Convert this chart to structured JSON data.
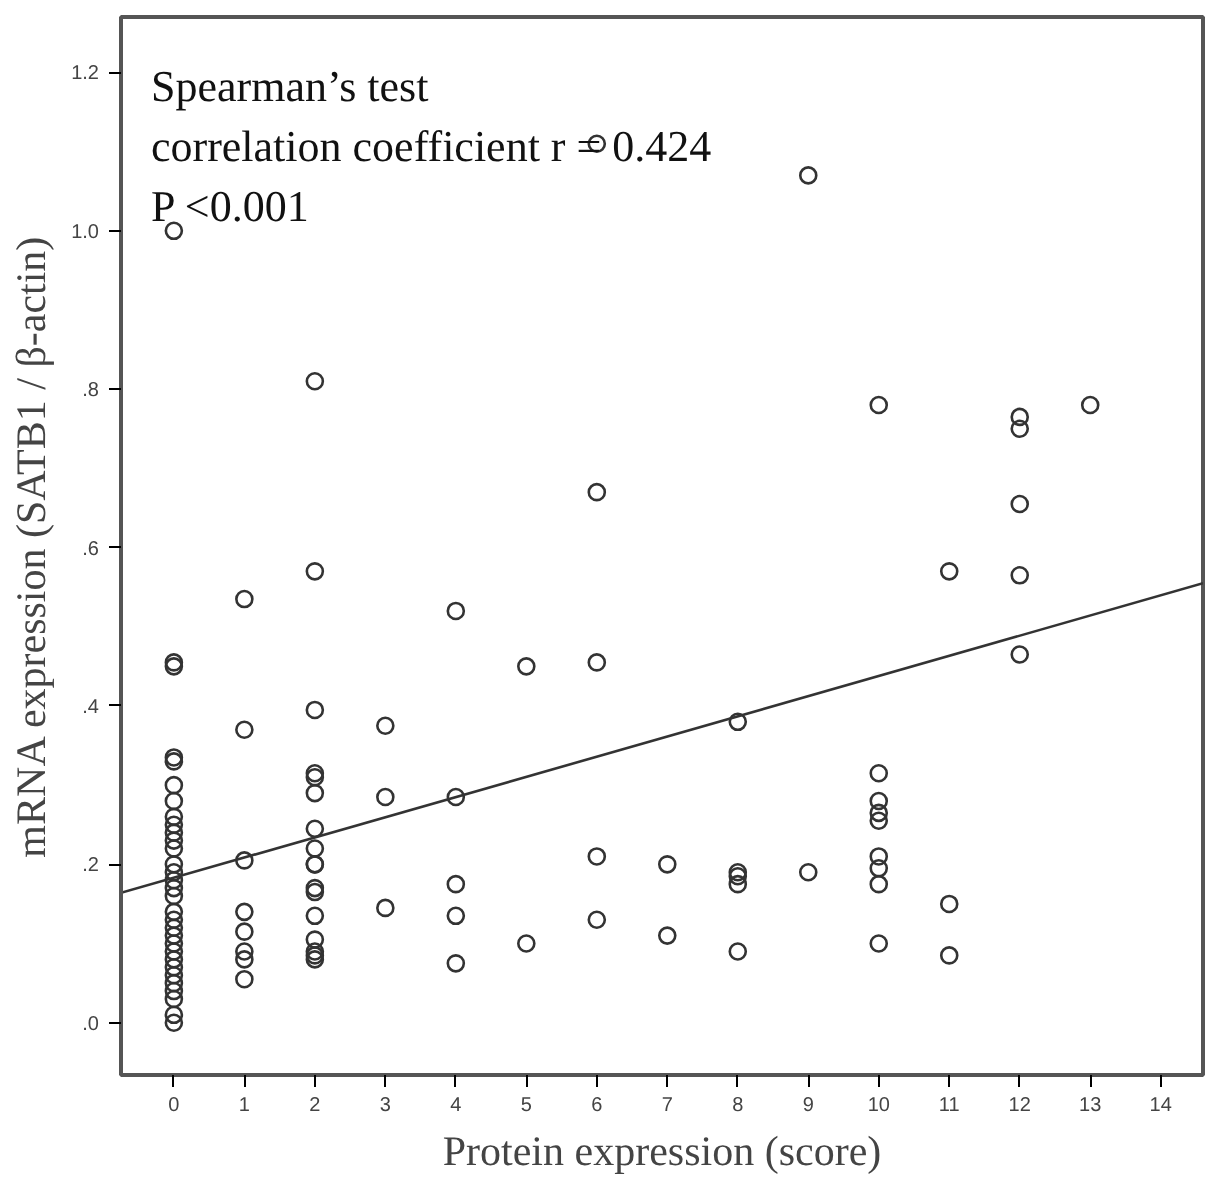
{
  "chart_data": {
    "type": "scatter",
    "xlabel": "Protein expression (score)",
    "ylabel": "mRNA expression (SATB1 / β-actin)",
    "annotations": [
      "Spearman’s test",
      "correlation coefficient r = 0.424",
      "P <0.001"
    ],
    "xlim": [
      -0.75,
      14.6
    ],
    "ylim": [
      -0.066,
      1.27
    ],
    "xticks": [
      0,
      1,
      2,
      3,
      4,
      5,
      6,
      7,
      8,
      9,
      10,
      11,
      12,
      13,
      14
    ],
    "yticks": [
      {
        "value": 0,
        "label": ".0"
      },
      {
        "value": 0.2,
        "label": ".2"
      },
      {
        "value": 0.4,
        "label": ".4"
      },
      {
        "value": 0.6,
        "label": ".6"
      },
      {
        "value": 0.8,
        "label": ".8"
      },
      {
        "value": 1.0,
        "label": "1.0"
      },
      {
        "value": 1.2,
        "label": "1.2"
      }
    ],
    "grid": false,
    "series": [
      {
        "color": "#333333",
        "marker": "circle",
        "x": [
          0,
          0,
          0,
          0,
          0,
          0,
          0,
          0,
          0,
          0,
          0,
          0,
          0,
          0,
          0,
          0,
          0,
          0,
          0,
          0,
          0,
          0,
          0,
          0,
          0,
          0,
          0,
          0,
          0,
          0,
          0,
          1,
          1,
          1,
          1,
          1,
          1,
          1,
          1,
          2,
          2,
          2,
          2,
          2,
          2,
          2,
          2,
          2,
          2,
          2,
          2,
          2,
          2,
          2,
          2,
          2,
          3,
          3,
          3,
          4,
          4,
          4,
          4,
          4,
          5,
          5,
          6,
          6,
          6,
          6,
          6,
          7,
          7,
          8,
          8,
          8,
          8,
          8,
          9,
          9,
          10,
          10,
          10,
          10,
          10,
          10,
          10,
          10,
          10,
          11,
          11,
          11,
          12,
          12,
          12,
          12,
          12,
          13
        ],
        "values": [
          1.0,
          0.455,
          0.45,
          0.335,
          0.33,
          0.3,
          0.28,
          0.26,
          0.25,
          0.24,
          0.23,
          0.22,
          0.2,
          0.19,
          0.18,
          0.17,
          0.16,
          0.14,
          0.13,
          0.12,
          0.11,
          0.1,
          0.09,
          0.08,
          0.07,
          0.06,
          0.05,
          0.04,
          0.03,
          0.01,
          0.0,
          0.535,
          0.37,
          0.205,
          0.14,
          0.115,
          0.09,
          0.08,
          0.055,
          0.81,
          0.57,
          0.395,
          0.315,
          0.31,
          0.29,
          0.245,
          0.22,
          0.2,
          0.2,
          0.17,
          0.165,
          0.135,
          0.105,
          0.09,
          0.085,
          0.08,
          0.375,
          0.285,
          0.145,
          0.52,
          0.285,
          0.175,
          0.135,
          0.075,
          0.45,
          0.1,
          1.11,
          0.67,
          0.455,
          0.21,
          0.13,
          0.2,
          0.11,
          0.38,
          0.19,
          0.185,
          0.175,
          0.09,
          1.07,
          0.19,
          0.78,
          0.315,
          0.28,
          0.265,
          0.255,
          0.21,
          0.195,
          0.175,
          0.1,
          0.57,
          0.15,
          0.085,
          0.765,
          0.75,
          0.655,
          0.565,
          0.465,
          0.78
        ]
      },
      {
        "type": "line",
        "marker": "none",
        "color": "#333333",
        "x": [
          -0.75,
          14.6
        ],
        "values": [
          0.164,
          0.555
        ]
      }
    ]
  }
}
